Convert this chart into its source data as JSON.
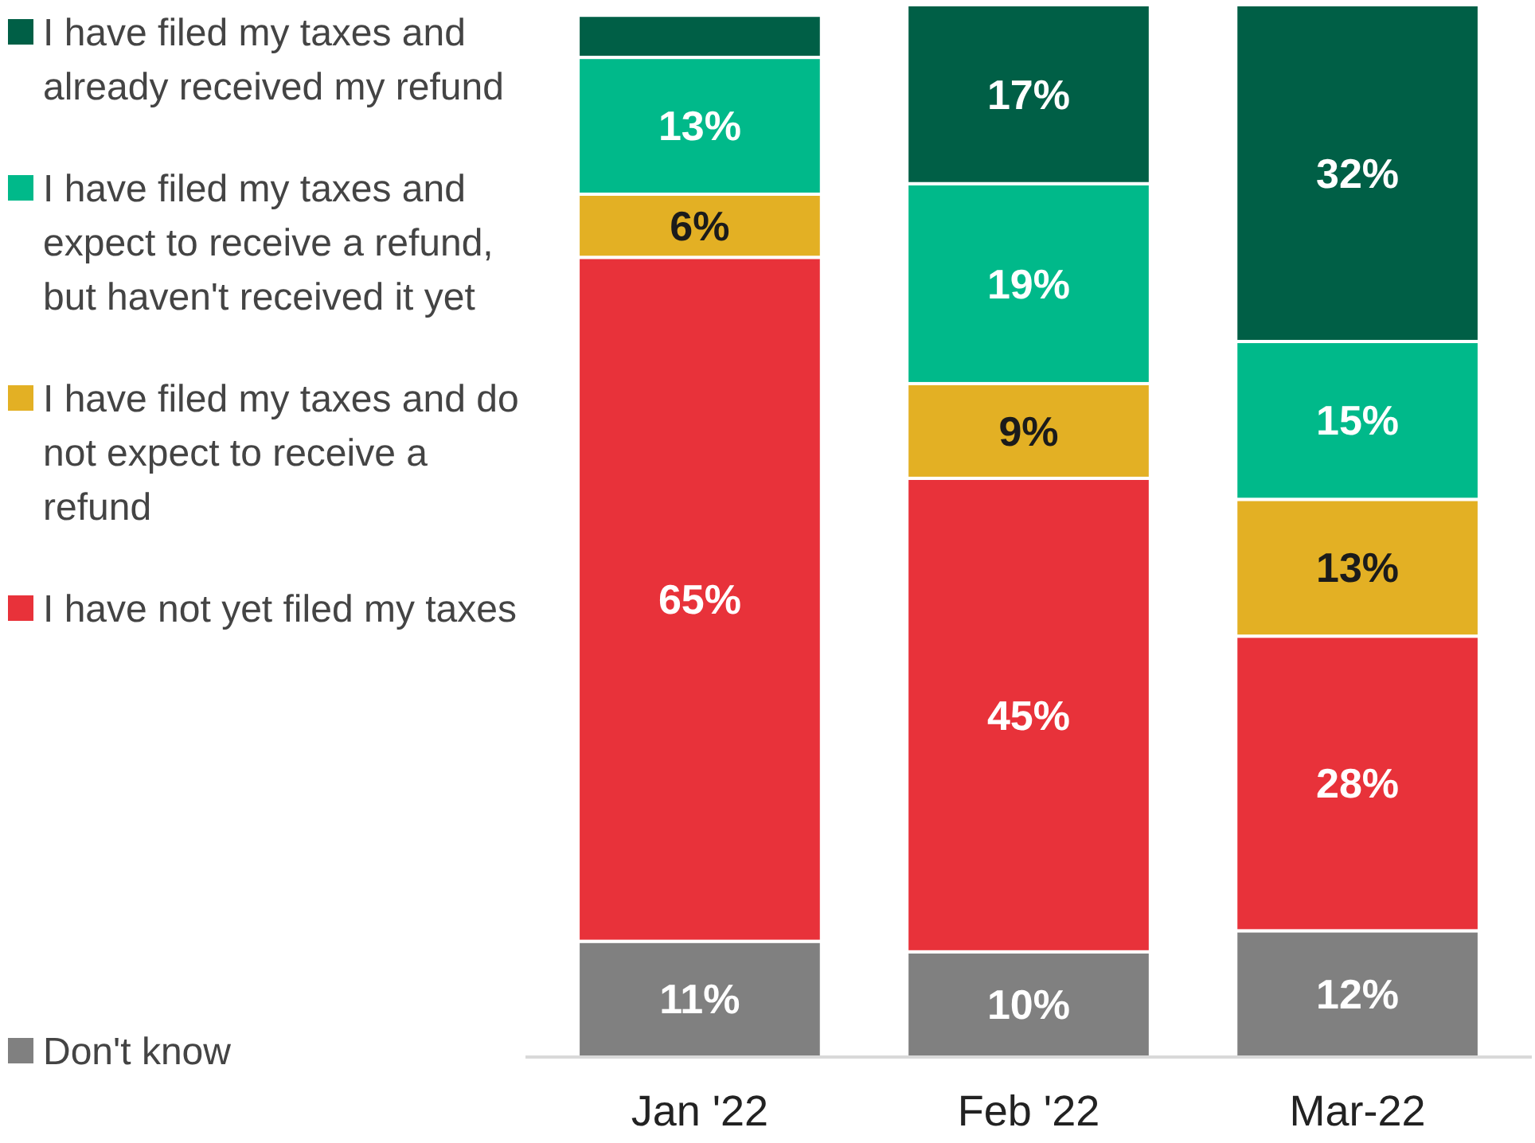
{
  "chart_data": {
    "type": "bar",
    "stacked": true,
    "categories": [
      "Jan '22",
      "Feb '22",
      "Mar-22"
    ],
    "ylim": [
      0,
      100
    ],
    "tick_labels": "x",
    "legend": "left",
    "grid": false,
    "series": [
      {
        "name": "Don't know",
        "color": "#808080",
        "values": [
          11,
          10,
          12
        ],
        "value_labels": [
          "11%",
          "10%",
          "12%"
        ]
      },
      {
        "name": "I have not yet filed my taxes",
        "color": "#e8323a",
        "values": [
          65,
          45,
          28
        ],
        "value_labels": [
          "65%",
          "45%",
          "28%"
        ]
      },
      {
        "name": "I have filed my taxes and do not expect to receive a refund",
        "color": "#e3b024",
        "values": [
          6,
          9,
          13
        ],
        "value_labels": [
          "6%",
          "9%",
          "13%"
        ]
      },
      {
        "name": "I have filed my taxes and expect to receive a refund, but haven't received it yet",
        "color": "#00b98a",
        "values": [
          13,
          19,
          15
        ],
        "value_labels": [
          "13%",
          "19%",
          "15%"
        ]
      },
      {
        "name": "I have filed my taxes and already received my refund",
        "color": "#005f46",
        "values": [
          4,
          17,
          32
        ],
        "value_labels": [
          null,
          "17%",
          "32%"
        ]
      }
    ]
  }
}
